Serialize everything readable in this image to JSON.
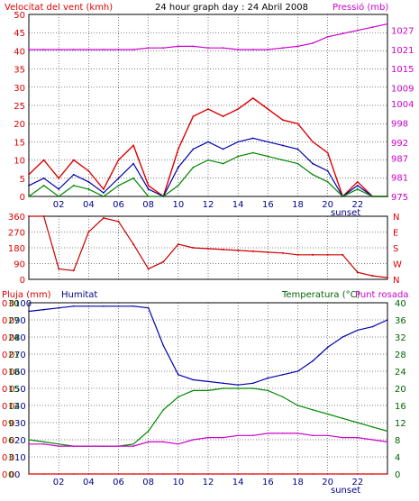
{
  "colors": {
    "wind": "#dd0000",
    "wind_avg": "#0000aa",
    "wind_green": "#008800",
    "pressure": "#cc00cc",
    "direction": "#cc0000",
    "humidity": "#0000aa",
    "temperature": "#008800",
    "dewpoint": "#cc00cc",
    "rain": "#dd0000",
    "grid": "#000000",
    "text_black": "#000000",
    "text_red": "#dd0000",
    "text_blue": "#000088",
    "text_green": "#006600",
    "text_magenta": "#cc00cc"
  },
  "panel1": {
    "title": "24 hour graph day : 24 Abril 2008",
    "left_label": "Velocitat del vent (kmh)",
    "right_label": "Pressió (mb)",
    "left_ticks": [
      "0",
      "5",
      "10",
      "15",
      "20",
      "25",
      "30",
      "35",
      "40",
      "45",
      "50"
    ],
    "right_ticks": [
      "975",
      "981",
      "987",
      "992",
      "998",
      "1004",
      "1009",
      "1015",
      "1021",
      "1027"
    ],
    "x_ticks": [
      "02",
      "04",
      "06",
      "08",
      "10",
      "12",
      "14",
      "16",
      "18",
      "20",
      "22"
    ],
    "sunset_label": "sunset"
  },
  "panel2": {
    "left_ticks": [
      "0",
      "90",
      "180",
      "270",
      "360"
    ],
    "right_labels": [
      "N",
      "E",
      "S",
      "W",
      "N"
    ]
  },
  "panel3": {
    "rain_label": "Pluja (mm)",
    "humidity_label": "Humitat",
    "temp_label": "Temperatura (°C)",
    "dew_label": "Punt rosada",
    "rain_ticks": [
      "0",
      "0",
      "0",
      "0",
      "0",
      "0",
      "0",
      "0",
      "0",
      "0",
      "0"
    ],
    "humidity_ticks": [
      "0",
      "10",
      "20",
      "30",
      "40",
      "50",
      "60",
      "70",
      "80",
      "90",
      "100"
    ],
    "temp_dew_ticks": [
      "0",
      "3",
      "6",
      "9",
      "12",
      "15",
      "18",
      "21",
      "24",
      "27",
      "30"
    ],
    "right_ticks": [
      "0",
      "4",
      "8",
      "12",
      "16",
      "20",
      "24",
      "28",
      "32",
      "36",
      "40"
    ],
    "x_ticks": [
      "02",
      "04",
      "06",
      "08",
      "10",
      "12",
      "14",
      "16",
      "18",
      "20",
      "22"
    ],
    "sunset_label": "sunset"
  },
  "chart_data": [
    {
      "type": "line",
      "title": "24 hour graph day : 24 Abril 2008",
      "ylabel": "Velocitat del vent (kmh)",
      "y2label": "Pressió (mb)",
      "x": [
        0,
        1,
        2,
        3,
        4,
        5,
        6,
        7,
        8,
        9,
        10,
        11,
        12,
        13,
        14,
        15,
        16,
        17,
        18,
        19,
        20,
        21,
        22,
        23,
        24
      ],
      "ylim": [
        0,
        50
      ],
      "y2lim": [
        975,
        1032
      ],
      "series": [
        {
          "name": "Velocitat del vent",
          "axis": "left",
          "values": [
            6,
            10,
            5,
            10,
            7,
            2,
            10,
            14,
            3,
            0,
            13,
            22,
            24,
            22,
            24,
            27,
            24,
            21,
            20,
            15,
            12,
            0,
            4,
            0,
            0
          ]
        },
        {
          "axis": "left",
          "values": [
            3,
            5,
            2,
            6,
            4,
            1,
            5,
            9,
            2,
            0,
            8,
            13,
            15,
            13,
            15,
            16,
            15,
            14,
            13,
            9,
            7,
            0,
            3,
            0,
            0
          ]
        },
        {
          "axis": "left",
          "values": [
            0,
            3,
            0,
            3,
            2,
            0,
            3,
            5,
            0,
            0,
            3,
            8,
            10,
            9,
            11,
            12,
            11,
            10,
            9,
            6,
            4,
            0,
            2,
            0,
            0
          ]
        },
        {
          "name": "Pressió",
          "axis": "right",
          "values": [
            1021,
            1021,
            1021,
            1021,
            1021,
            1021,
            1021,
            1021,
            1021.5,
            1021.5,
            1022,
            1022,
            1021.5,
            1021.5,
            1021,
            1021,
            1021,
            1021.5,
            1022,
            1023,
            1025,
            1026,
            1027,
            1028,
            1029
          ]
        }
      ]
    },
    {
      "type": "scatter",
      "ylabel": "",
      "ylim": [
        0,
        360
      ],
      "x": [
        0,
        1,
        2,
        3,
        4,
        5,
        6,
        7,
        8,
        9,
        10,
        11,
        12,
        13,
        14,
        15,
        16,
        17,
        18,
        19,
        20,
        21,
        22,
        23,
        24
      ],
      "series": [
        {
          "values": [
            360,
            360,
            60,
            50,
            270,
            350,
            330,
            200,
            60,
            100,
            200,
            180,
            175,
            170,
            165,
            160,
            155,
            150,
            140,
            140,
            140,
            140,
            40,
            20,
            10
          ]
        }
      ]
    },
    {
      "type": "line",
      "ylabel": "Pluja (mm)",
      "ylim": [
        0,
        100
      ],
      "x": [
        0,
        1,
        2,
        3,
        4,
        5,
        6,
        7,
        8,
        9,
        10,
        11,
        12,
        13,
        14,
        15,
        16,
        17,
        18,
        19,
        20,
        21,
        22,
        23,
        24
      ],
      "series": [
        {
          "name": "Pluja (mm)",
          "axis": "rain",
          "values": [
            0,
            0,
            0,
            0,
            0,
            0,
            0,
            0,
            0,
            0,
            0,
            0,
            0,
            0,
            0,
            0,
            0,
            0,
            0,
            0,
            0,
            0,
            0,
            0,
            0
          ]
        },
        {
          "name": "Humitat",
          "axis": "humidity",
          "values": [
            95,
            96,
            97,
            98,
            98,
            98,
            98,
            98,
            97,
            75,
            58,
            55,
            54,
            53,
            52,
            53,
            56,
            58,
            60,
            66,
            74,
            80,
            84,
            86,
            90
          ]
        },
        {
          "name": "Temperatura (°C)",
          "axis": "temp",
          "values": [
            8,
            7.5,
            7,
            6.5,
            6.5,
            6.5,
            6.5,
            7,
            10,
            15,
            18,
            19.5,
            19.5,
            20,
            20,
            20,
            19.5,
            18,
            16,
            15,
            14,
            13,
            12,
            11,
            10
          ]
        },
        {
          "name": "Punt rosada",
          "axis": "temp",
          "values": [
            7,
            7,
            6.5,
            6.5,
            6.5,
            6.5,
            6.5,
            6.5,
            7.5,
            7.5,
            7,
            8,
            8.5,
            8.5,
            9,
            9,
            9.5,
            9.5,
            9.5,
            9,
            9,
            8.5,
            8.5,
            8,
            7.5
          ]
        }
      ]
    }
  ]
}
